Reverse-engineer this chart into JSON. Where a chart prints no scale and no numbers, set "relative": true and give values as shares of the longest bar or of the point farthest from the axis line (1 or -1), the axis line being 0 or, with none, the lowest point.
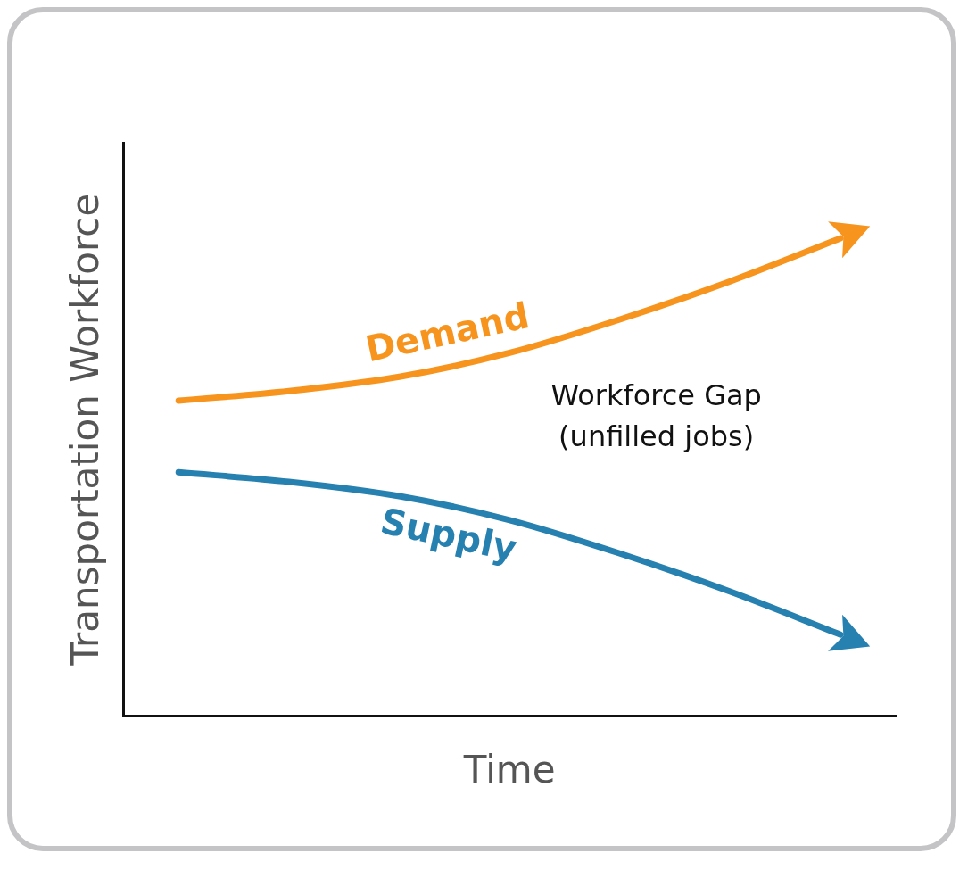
{
  "chart_data": {
    "type": "line",
    "relative": true,
    "xlabel": "Time",
    "ylabel": "Transportation Workforce",
    "categories": [
      null,
      null,
      null,
      null,
      null,
      null,
      null
    ],
    "series": [
      {
        "name": "Demand",
        "color": "#f7941d",
        "values": [
          0.66,
          0.68,
          0.71,
          0.76,
          0.83,
          0.91,
          1.0
        ]
      },
      {
        "name": "Supply",
        "color": "#2680b0",
        "values": [
          0.51,
          0.49,
          0.46,
          0.41,
          0.34,
          0.26,
          0.17
        ]
      }
    ],
    "annotations": [
      "Workforce Gap\n(unfilled jobs)"
    ],
    "grid": false,
    "legend": false,
    "marker": "none",
    "line_style": "solid"
  }
}
